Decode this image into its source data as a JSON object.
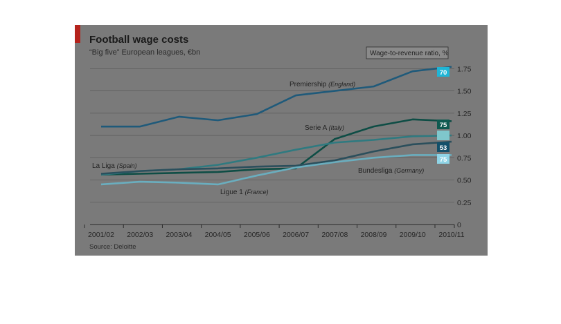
{
  "chart_data": {
    "type": "line",
    "title": "Football wage costs",
    "subtitle": "“Big five” European leagues, €bn",
    "source": "Source: Deloitte",
    "categories": [
      "2001/02",
      "2002/03",
      "2003/04",
      "2004/05",
      "2005/06",
      "2006/07",
      "2007/08",
      "2008/09",
      "2009/10",
      "2010/11"
    ],
    "ylim": [
      0,
      1.9
    ],
    "yticks": [
      0,
      0.25,
      0.5,
      0.75,
      1.0,
      1.25,
      1.5,
      1.75
    ],
    "ytick_labels": [
      "0",
      "0.25",
      "0.50",
      "0.75",
      "1.00",
      "1.25",
      "1.50",
      "1.75"
    ],
    "grid": true,
    "ratio_legend": "Wage-to-revenue ratio, %",
    "series": [
      {
        "name": "Premiership",
        "country": "(England)",
        "color": "#1f5a7a",
        "ratio": "70",
        "badge_color": "#1fb5d6",
        "values": [
          1.1,
          1.1,
          1.21,
          1.17,
          1.24,
          1.45,
          1.5,
          1.55,
          1.72,
          1.77
        ]
      },
      {
        "name": "Serie A",
        "country": "(Italy)",
        "color": "#0e4d45",
        "ratio": "75",
        "badge_color": "#0f5a50",
        "values": [
          0.56,
          0.57,
          0.58,
          0.59,
          0.62,
          0.63,
          0.96,
          1.1,
          1.18,
          1.16
        ]
      },
      {
        "name": "La Liga",
        "country": "(Spain)",
        "color": "#2f7a80",
        "ratio": "",
        "badge_color": "#7fc7cc",
        "values": [
          0.56,
          0.6,
          0.62,
          0.67,
          0.75,
          0.84,
          0.92,
          0.95,
          0.99,
          1.0
        ]
      },
      {
        "name": "Ligue 1",
        "country": "(France)",
        "color": "#2b4f5c",
        "ratio": "53",
        "badge_color": "#13506a",
        "values": [
          0.57,
          0.6,
          0.62,
          0.63,
          0.65,
          0.66,
          0.72,
          0.82,
          0.9,
          0.93
        ]
      },
      {
        "name": "Bundesliga",
        "country": "(Germany)",
        "color": "#6aaebf",
        "ratio": "75",
        "badge_color": "#8fd4e6",
        "values": [
          0.45,
          0.48,
          0.47,
          0.45,
          0.55,
          0.64,
          0.7,
          0.75,
          0.78,
          0.78
        ]
      }
    ],
    "legend_position": "right-end labels"
  },
  "accent_color": "#c0281e"
}
